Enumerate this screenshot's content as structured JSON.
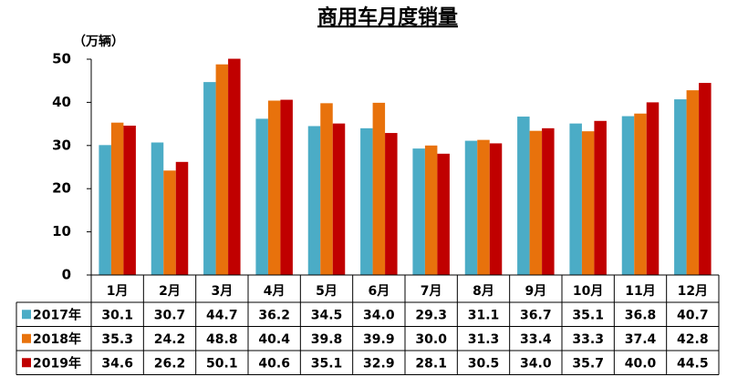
{
  "chart_data": {
    "type": "bar",
    "title": "商用车月度销量",
    "ylabel": "（万辆）",
    "categories": [
      "1月",
      "2月",
      "3月",
      "4月",
      "5月",
      "6月",
      "7月",
      "8月",
      "9月",
      "10月",
      "11月",
      "12月"
    ],
    "series": [
      {
        "name": "2017年",
        "color": "#4bacc6",
        "values": [
          30.1,
          30.7,
          44.7,
          36.2,
          34.5,
          34.0,
          29.3,
          31.1,
          36.7,
          35.1,
          36.8,
          40.7
        ],
        "value_labels": [
          "30.1",
          "30.7",
          "44.7",
          "36.2",
          "34.5",
          "34.0",
          "29.3",
          "31.1",
          "36.7",
          "35.1",
          "36.8",
          "40.7"
        ]
      },
      {
        "name": "2018年",
        "color": "#e8720c",
        "values": [
          35.3,
          24.2,
          48.8,
          40.4,
          39.8,
          39.9,
          30.0,
          31.3,
          33.4,
          33.3,
          37.4,
          42.8
        ],
        "value_labels": [
          "35.3",
          "24.2",
          "48.8",
          "40.4",
          "39.8",
          "39.9",
          "30.0",
          "31.3",
          "33.4",
          "33.3",
          "37.4",
          "42.8"
        ]
      },
      {
        "name": "2019年",
        "color": "#c00000",
        "values": [
          34.6,
          26.2,
          50.1,
          40.6,
          35.1,
          32.9,
          28.1,
          30.5,
          34.0,
          35.7,
          40.0,
          44.5
        ],
        "value_labels": [
          "34.6",
          "26.2",
          "50.1",
          "40.6",
          "35.1",
          "32.9",
          "28.1",
          "30.5",
          "34.0",
          "35.7",
          "40.0",
          "44.5"
        ]
      }
    ],
    "ylim": [
      0,
      50
    ],
    "yticks": [
      0,
      10,
      20,
      30,
      40,
      50
    ]
  }
}
